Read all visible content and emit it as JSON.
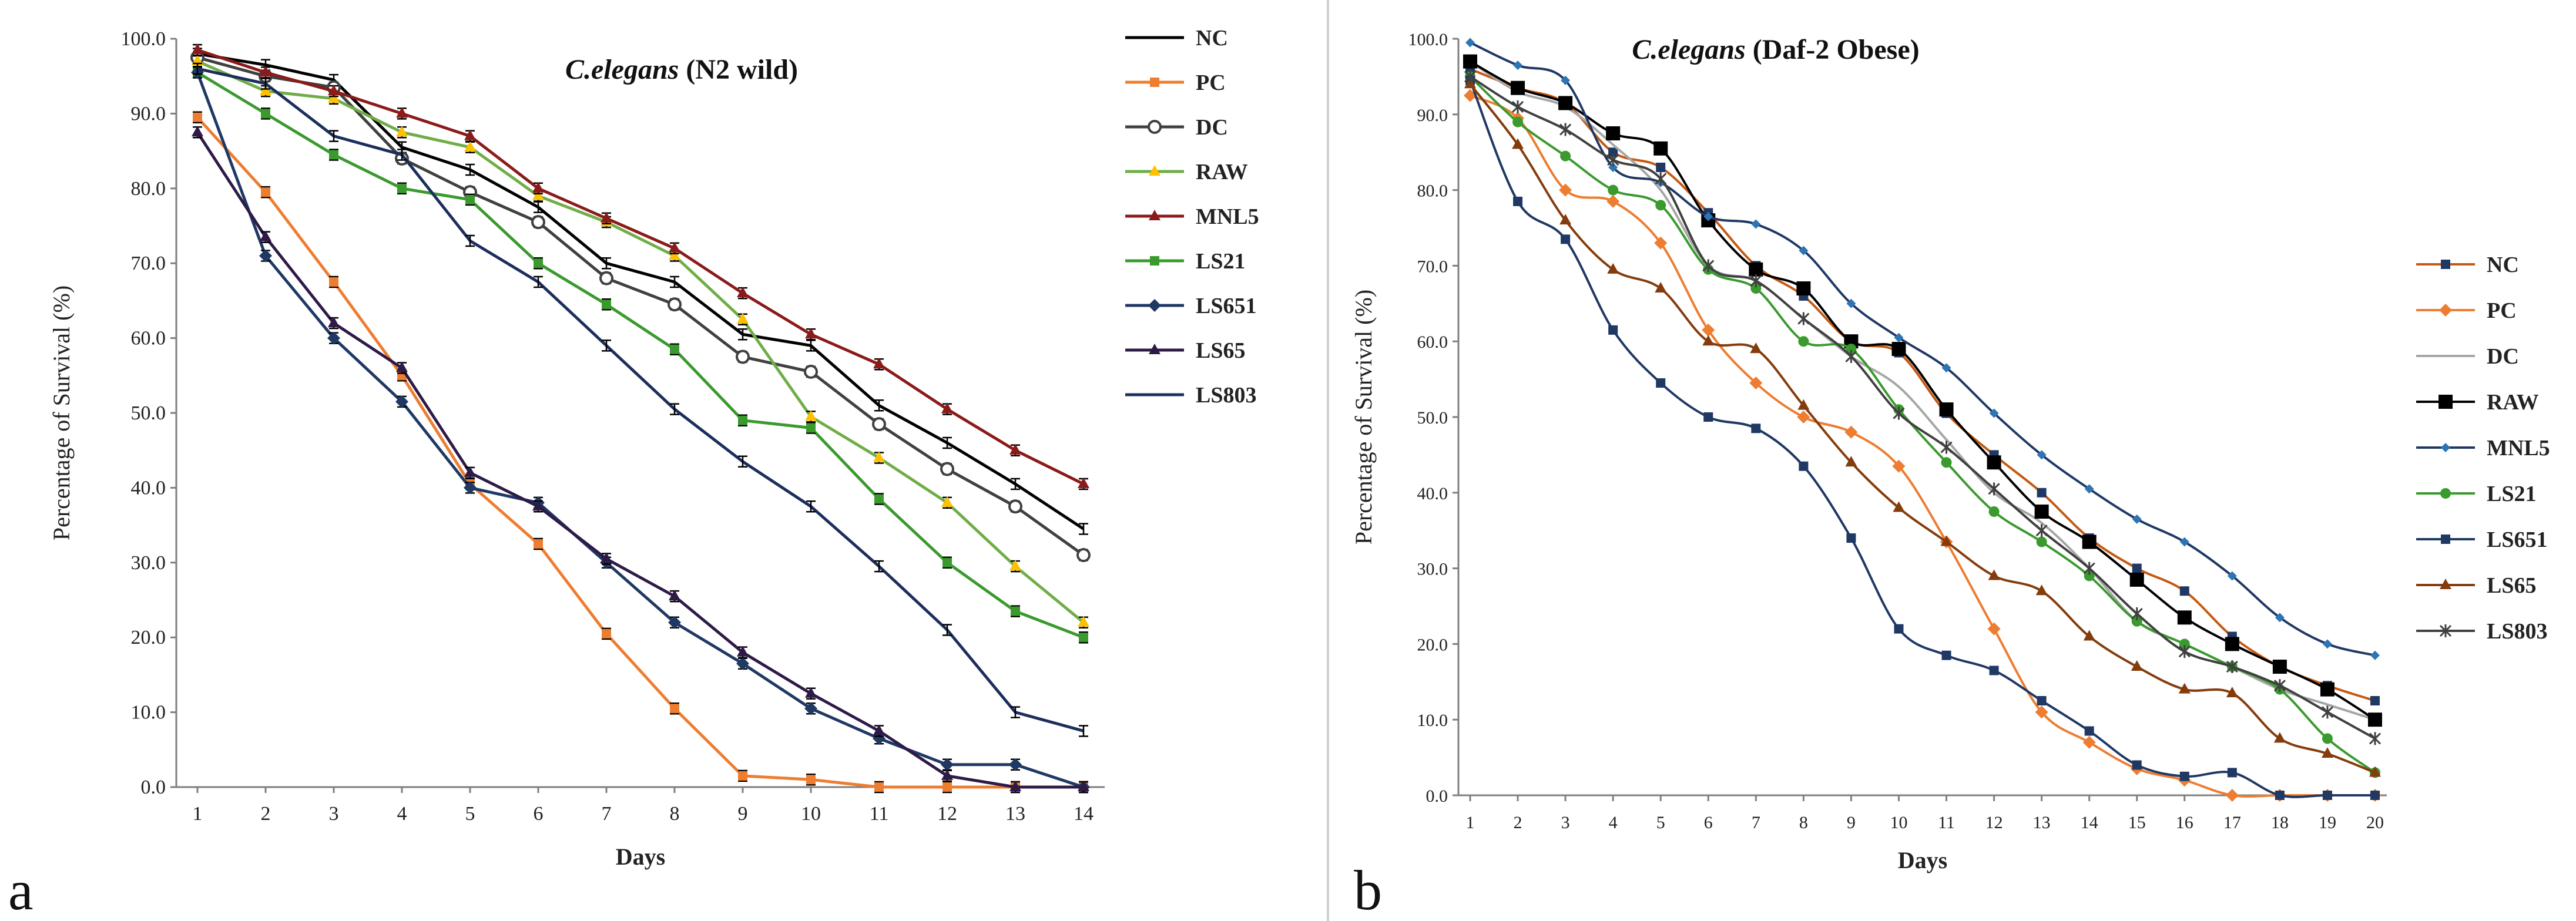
{
  "chart_data": [
    {
      "type": "line",
      "panel_label": "a",
      "title_italic": "C.elegans",
      "title_rest": " (N2 wild)",
      "xlabel": "Days",
      "ylabel": "Percentage of Survival (%)",
      "ylim": [
        0,
        100
      ],
      "yticks": [
        "0.0",
        "10.0",
        "20.0",
        "30.0",
        "40.0",
        "50.0",
        "60.0",
        "70.0",
        "80.0",
        "90.0",
        "100.0"
      ],
      "x": [
        1,
        2,
        3,
        4,
        5,
        6,
        7,
        8,
        9,
        10,
        11,
        12,
        13,
        14
      ],
      "error_bars": true,
      "legend_position": "right",
      "series": [
        {
          "name": "NC",
          "color": "#000000",
          "marker": "none",
          "values": [
            98,
            96.5,
            94.5,
            85.5,
            82.5,
            77.5,
            70,
            67.5,
            60.5,
            59,
            51,
            46,
            40.5,
            34.5
          ]
        },
        {
          "name": "PC",
          "color": "#ED7D31",
          "marker": "square",
          "values": [
            89.5,
            79.5,
            67.5,
            55,
            40.5,
            32.5,
            20.5,
            10.5,
            1.5,
            1,
            0,
            0,
            0,
            0
          ]
        },
        {
          "name": "DC",
          "color": "#404040",
          "marker": "circle-open",
          "values": [
            97.5,
            95,
            93.5,
            84,
            79.5,
            75.5,
            68,
            64.5,
            57.5,
            55.5,
            48.5,
            42.5,
            37.5,
            31
          ]
        },
        {
          "name": "RAW",
          "color": "#70AD47",
          "marker": "tri",
          "markerColor": "#FFC000",
          "values": [
            97,
            93,
            92,
            87.5,
            85.5,
            79,
            75.5,
            71,
            62.5,
            49.5,
            44,
            38,
            29.5,
            22
          ]
        },
        {
          "name": "MNL5",
          "color": "#8B1A1A",
          "marker": "tri",
          "values": [
            98.5,
            95.5,
            93,
            90,
            87,
            80,
            76,
            72,
            66,
            60.5,
            56.5,
            50.5,
            45,
            40.5
          ]
        },
        {
          "name": "LS21",
          "color": "#3A9A2E",
          "marker": "square",
          "values": [
            95.5,
            90,
            84.5,
            80,
            78.5,
            70,
            64.5,
            58.5,
            49,
            48,
            38.5,
            30,
            23.5,
            20
          ]
        },
        {
          "name": "LS651",
          "color": "#1F3864",
          "marker": "diamond",
          "values": [
            95.5,
            71,
            60,
            51.5,
            40,
            38,
            30,
            22,
            16.5,
            10.5,
            6.5,
            3,
            3,
            0
          ]
        },
        {
          "name": "LS65",
          "color": "#2E1A47",
          "marker": "tri",
          "values": [
            87.5,
            73.5,
            62,
            56,
            42,
            37.5,
            30.5,
            25.5,
            18,
            12.5,
            7.5,
            1.5,
            0,
            0
          ]
        },
        {
          "name": "LS803",
          "color": "#1C2E5C",
          "marker": "none",
          "values": [
            96,
            94,
            87,
            84.5,
            73,
            67.5,
            59,
            50.5,
            43.5,
            37.5,
            29.5,
            21,
            10,
            7.5
          ]
        }
      ]
    },
    {
      "type": "line",
      "panel_label": "b",
      "title_italic": "C.elegans",
      "title_rest": " (Daf-2 Obese)",
      "xlabel": "Days",
      "ylabel": "Percentage of Survival (%)",
      "ylim": [
        0,
        100
      ],
      "yticks": [
        "0.0",
        "10.0",
        "20.0",
        "30.0",
        "40.0",
        "50.0",
        "60.0",
        "70.0",
        "80.0",
        "90.0",
        "100.0"
      ],
      "x": [
        1,
        2,
        3,
        4,
        5,
        6,
        7,
        8,
        9,
        10,
        11,
        12,
        13,
        14,
        15,
        16,
        17,
        18,
        19,
        20
      ],
      "error_bars": false,
      "legend_position": "right",
      "series": [
        {
          "name": "NC",
          "color": "#C65911",
          "marker": "square",
          "markerColor": "#1F3864",
          "values": [
            96,
            93.5,
            91.5,
            85,
            83,
            77,
            70,
            66,
            60,
            58.5,
            50.5,
            45,
            40,
            34,
            30,
            27,
            21,
            17,
            14.5,
            12.5
          ]
        },
        {
          "name": "PC",
          "color": "#ED7D31",
          "marker": "diamond",
          "values": [
            92.5,
            89.5,
            80,
            78.5,
            73,
            61.5,
            54.5,
            50,
            48,
            43.5,
            33.5,
            22,
            11,
            7,
            3.5,
            2,
            0,
            0,
            0,
            0
          ]
        },
        {
          "name": "DC",
          "color": "#A6A6A6",
          "marker": "none",
          "values": [
            97,
            93,
            91,
            86,
            80,
            70,
            68,
            63,
            58,
            54,
            47,
            40,
            36,
            30,
            23,
            20,
            17,
            14,
            12,
            10
          ]
        },
        {
          "name": "RAW",
          "color": "#000000",
          "marker": "square-big",
          "values": [
            97,
            93.5,
            91.5,
            87.5,
            85.5,
            76,
            69.5,
            67,
            60,
            59,
            51,
            44,
            37.5,
            33.5,
            28.5,
            23.5,
            20,
            17,
            14,
            10
          ]
        },
        {
          "name": "MNL5",
          "color": "#1F3864",
          "marker": "diamond-small",
          "markerColor": "#2E75B6",
          "values": [
            99.5,
            96.5,
            94.5,
            83,
            81,
            76.5,
            75.5,
            72,
            65,
            60.5,
            56.5,
            50.5,
            45,
            40.5,
            36.5,
            33.5,
            29,
            23.5,
            20,
            18.5
          ]
        },
        {
          "name": "LS21",
          "color": "#3A9A2E",
          "marker": "circle",
          "values": [
            95,
            89,
            84.5,
            80,
            78,
            69.5,
            67,
            60,
            59,
            51,
            44,
            37.5,
            33.5,
            29,
            23,
            20,
            17,
            14,
            7.5,
            3
          ]
        },
        {
          "name": "LS651",
          "color": "#1F3864",
          "marker": "square",
          "values": [
            94.5,
            78.5,
            73.5,
            61.5,
            54.5,
            50,
            48.5,
            43.5,
            34,
            22,
            18.5,
            16.5,
            12.5,
            8.5,
            4,
            2.5,
            3,
            0,
            0,
            0
          ]
        },
        {
          "name": "LS65",
          "color": "#843C0C",
          "marker": "tri",
          "values": [
            94,
            86,
            76,
            69.5,
            67,
            60,
            59,
            51.5,
            44,
            38,
            33.5,
            29,
            27,
            21,
            17,
            14,
            13.5,
            7.5,
            5.5,
            3
          ]
        },
        {
          "name": "LS803",
          "color": "#404040",
          "marker": "star",
          "values": [
            95,
            91,
            88,
            84,
            81.5,
            70,
            68,
            63,
            58,
            50.5,
            46,
            40.5,
            35,
            30,
            24,
            19,
            17,
            14.5,
            11,
            7.5
          ]
        }
      ]
    }
  ]
}
